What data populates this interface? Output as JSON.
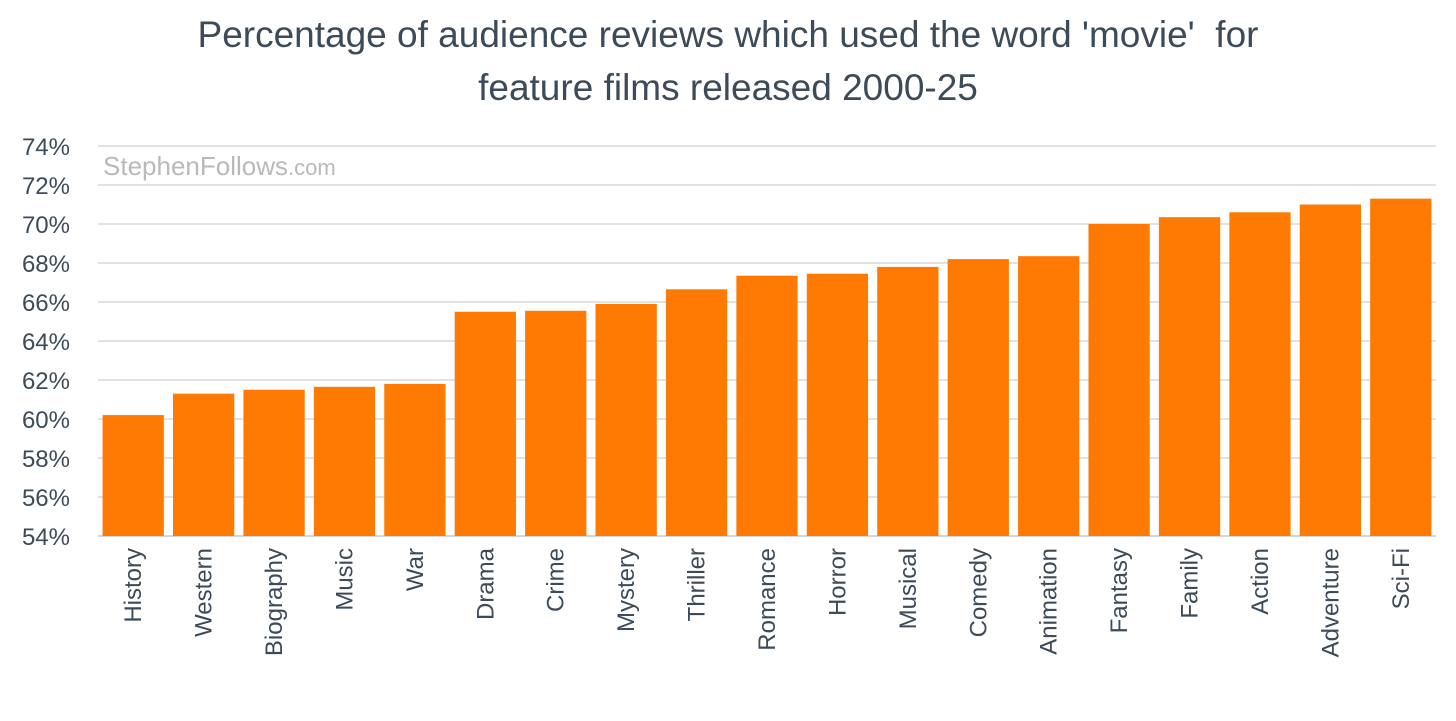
{
  "chart_data": {
    "type": "bar",
    "title_lines": [
      "Percentage of audience reviews which used the word 'movie'  for",
      "feature films released 2000-25"
    ],
    "watermark": {
      "brand": "StephenFollows",
      "suffix": ".com"
    },
    "xlabel": "",
    "ylabel": "",
    "ylim": [
      54,
      74
    ],
    "yticks": [
      54,
      56,
      58,
      60,
      62,
      64,
      66,
      68,
      70,
      72,
      74
    ],
    "ytick_suffix": "%",
    "grid": true,
    "categories": [
      "History",
      "Western",
      "Biography",
      "Music",
      "War",
      "Drama",
      "Crime",
      "Mystery",
      "Thriller",
      "Romance",
      "Horror",
      "Musical",
      "Comedy",
      "Animation",
      "Fantasy",
      "Family",
      "Action",
      "Adventure",
      "Sci-Fi"
    ],
    "values": [
      60.2,
      61.3,
      61.5,
      61.65,
      61.8,
      65.5,
      65.55,
      65.9,
      66.65,
      67.35,
      67.45,
      67.8,
      68.2,
      68.35,
      70.0,
      70.35,
      70.6,
      71.0,
      71.3
    ],
    "colors": {
      "bar": "#fe7a03",
      "grid": "#d9d9d9",
      "axis": "#c8c8c8",
      "text": "#3d4a57",
      "watermark": "#b9b9b9"
    }
  }
}
